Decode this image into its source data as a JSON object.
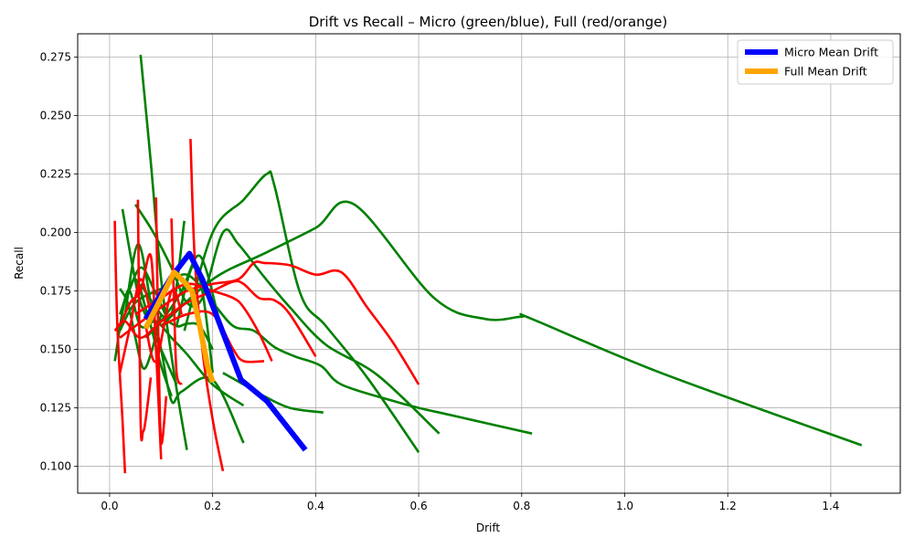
{
  "chart_data": {
    "type": "line",
    "title": "Drift vs Recall – Micro (green/blue), Full (red/orange)",
    "xlabel": "Drift",
    "ylabel": "Recall",
    "xlim": [
      -0.062,
      1.535
    ],
    "ylim": [
      0.0885,
      0.285
    ],
    "xticks": [
      0.0,
      0.2,
      0.4,
      0.6,
      0.8,
      1.0,
      1.2,
      1.4
    ],
    "xtick_labels": [
      "0.0",
      "0.2",
      "0.4",
      "0.6",
      "0.8",
      "1.0",
      "1.2",
      "1.4"
    ],
    "yticks": [
      0.1,
      0.125,
      0.15,
      0.175,
      0.2,
      0.225,
      0.25,
      0.275
    ],
    "ytick_labels": [
      "0.100",
      "0.125",
      "0.150",
      "0.175",
      "0.200",
      "0.225",
      "0.250",
      "0.275"
    ],
    "grid": true,
    "legend_position": "top-right",
    "colors": {
      "micro": "#008000",
      "full": "#ff0000",
      "micro_mean": "#0000ff",
      "full_mean": "#ffa500"
    },
    "legend": [
      {
        "label": "Micro Mean Drift",
        "color": "#0000ff"
      },
      {
        "label": "Full Mean Drift",
        "color": "#ffa500"
      }
    ],
    "mean_series": [
      {
        "name": "Micro Mean Drift",
        "color": "#0000ff",
        "x": [
          0.07,
          0.12,
          0.155,
          0.18,
          0.21,
          0.255,
          0.305,
          0.38
        ],
        "y": [
          0.163,
          0.181,
          0.191,
          0.18,
          0.163,
          0.137,
          0.128,
          0.107
        ]
      },
      {
        "name": "Full Mean Drift",
        "color": "#ffa500",
        "x": [
          0.07,
          0.1,
          0.125,
          0.14,
          0.16,
          0.175,
          0.19,
          0.2
        ],
        "y": [
          0.159,
          0.172,
          0.183,
          0.18,
          0.175,
          0.16,
          0.143,
          0.136
        ]
      }
    ],
    "micro_lines": [
      {
        "x": [
          0.06,
          0.08,
          0.1,
          0.125,
          0.15
        ],
        "y": [
          0.276,
          0.23,
          0.18,
          0.14,
          0.107
        ]
      },
      {
        "x": [
          0.145,
          0.2,
          0.26,
          0.305,
          0.32,
          0.37,
          0.42,
          0.5,
          0.6
        ],
        "y": [
          0.158,
          0.2,
          0.214,
          0.225,
          0.22,
          0.174,
          0.16,
          0.138,
          0.106
        ]
      },
      {
        "x": [
          0.1,
          0.2,
          0.3,
          0.4,
          0.475,
          0.63,
          0.73,
          0.8,
          0.82,
          1.07,
          1.46
        ],
        "y": [
          0.16,
          0.18,
          0.191,
          0.202,
          0.212,
          0.172,
          0.163,
          0.164,
          0.163,
          0.14,
          0.109
        ]
      },
      {
        "x": [
          0.025,
          0.045,
          0.06,
          0.09,
          0.13
        ],
        "y": [
          0.21,
          0.185,
          0.17,
          0.155,
          0.135
        ]
      },
      {
        "x": [
          0.05,
          0.085,
          0.12,
          0.15,
          0.18,
          0.22,
          0.25,
          0.3,
          0.35,
          0.42,
          0.52,
          0.64
        ],
        "y": [
          0.212,
          0.2,
          0.185,
          0.17,
          0.172,
          0.2,
          0.195,
          0.181,
          0.168,
          0.152,
          0.139,
          0.114
        ]
      },
      {
        "x": [
          0.02,
          0.035,
          0.05,
          0.065,
          0.08,
          0.1
        ],
        "y": [
          0.176,
          0.17,
          0.155,
          0.142,
          0.148,
          0.165
        ]
      },
      {
        "x": [
          0.06,
          0.1,
          0.13,
          0.15,
          0.175,
          0.2
        ],
        "y": [
          0.178,
          0.165,
          0.16,
          0.161,
          0.16,
          0.15
        ]
      },
      {
        "x": [
          0.01,
          0.035,
          0.06,
          0.09,
          0.12,
          0.15,
          0.2,
          0.26
        ],
        "y": [
          0.145,
          0.175,
          0.16,
          0.162,
          0.155,
          0.148,
          0.135,
          0.126
        ]
      },
      {
        "x": [
          0.02,
          0.05,
          0.1,
          0.15,
          0.2,
          0.24,
          0.28,
          0.32,
          0.36,
          0.41,
          0.45,
          0.55,
          0.6,
          0.66,
          0.82
        ],
        "y": [
          0.158,
          0.17,
          0.176,
          0.182,
          0.17,
          0.16,
          0.158,
          0.151,
          0.147,
          0.143,
          0.135,
          0.128,
          0.125,
          0.122,
          0.114
        ]
      },
      {
        "x": [
          0.03,
          0.055,
          0.08,
          0.1,
          0.12,
          0.14,
          0.2,
          0.26
        ],
        "y": [
          0.165,
          0.195,
          0.17,
          0.15,
          0.128,
          0.132,
          0.137,
          0.11
        ]
      },
      {
        "x": [
          0.13,
          0.16,
          0.18,
          0.2
        ],
        "y": [
          0.16,
          0.185,
          0.175,
          0.14
        ]
      },
      {
        "x": [
          0.03,
          0.06,
          0.09,
          0.12,
          0.145
        ],
        "y": [
          0.17,
          0.185,
          0.174,
          0.165,
          0.205
        ]
      },
      {
        "x": [
          0.06,
          0.08,
          0.1,
          0.12
        ],
        "y": [
          0.175,
          0.16,
          0.143,
          0.13
        ]
      },
      {
        "x": [
          0.07,
          0.1,
          0.14,
          0.175,
          0.21
        ],
        "y": [
          0.155,
          0.162,
          0.175,
          0.19,
          0.165
        ]
      },
      {
        "x": [
          0.02,
          0.05,
          0.08,
          0.1
        ],
        "y": [
          0.165,
          0.18,
          0.162,
          0.175
        ]
      },
      {
        "x": [
          0.22,
          0.26,
          0.3,
          0.35,
          0.415
        ],
        "y": [
          0.14,
          0.135,
          0.13,
          0.125,
          0.123
        ]
      }
    ],
    "full_lines": [
      {
        "x": [
          0.01,
          0.015,
          0.025,
          0.03
        ],
        "y": [
          0.205,
          0.16,
          0.12,
          0.097
        ]
      },
      {
        "x": [
          0.157,
          0.165,
          0.18,
          0.2,
          0.22
        ],
        "y": [
          0.24,
          0.19,
          0.15,
          0.12,
          0.098
        ]
      },
      {
        "x": [
          0.055,
          0.06,
          0.065,
          0.07,
          0.08
        ],
        "y": [
          0.214,
          0.12,
          0.115,
          0.12,
          0.138
        ]
      },
      {
        "x": [
          0.09,
          0.095,
          0.1,
          0.11
        ],
        "y": [
          0.215,
          0.15,
          0.11,
          0.13
        ]
      },
      {
        "x": [
          0.12,
          0.125,
          0.13,
          0.14
        ],
        "y": [
          0.206,
          0.17,
          0.14,
          0.135
        ]
      },
      {
        "x": [
          0.02,
          0.04,
          0.06,
          0.08,
          0.09,
          0.1
        ],
        "y": [
          0.16,
          0.17,
          0.175,
          0.19,
          0.15,
          0.103
        ]
      },
      {
        "x": [
          0.02,
          0.05,
          0.1,
          0.15,
          0.2,
          0.25,
          0.28,
          0.3,
          0.35,
          0.4,
          0.45,
          0.5,
          0.55,
          0.6
        ],
        "y": [
          0.155,
          0.16,
          0.168,
          0.175,
          0.178,
          0.18,
          0.187,
          0.187,
          0.186,
          0.182,
          0.183,
          0.168,
          0.153,
          0.135
        ]
      },
      {
        "x": [
          0.01,
          0.03,
          0.06,
          0.1,
          0.15,
          0.2,
          0.24,
          0.26,
          0.29,
          0.32,
          0.35,
          0.4
        ],
        "y": [
          0.158,
          0.162,
          0.155,
          0.162,
          0.17,
          0.175,
          0.179,
          0.178,
          0.172,
          0.171,
          0.165,
          0.147
        ]
      },
      {
        "x": [
          0.05,
          0.1,
          0.15,
          0.2,
          0.24,
          0.26,
          0.29,
          0.315
        ],
        "y": [
          0.165,
          0.172,
          0.178,
          0.175,
          0.172,
          0.168,
          0.157,
          0.145
        ]
      },
      {
        "x": [
          0.1,
          0.15,
          0.2,
          0.24,
          0.26,
          0.3
        ],
        "y": [
          0.16,
          0.165,
          0.165,
          0.15,
          0.145,
          0.145
        ]
      },
      {
        "x": [
          0.02,
          0.04,
          0.06,
          0.08
        ],
        "y": [
          0.14,
          0.16,
          0.18,
          0.165
        ]
      },
      {
        "x": [
          0.07,
          0.09,
          0.12,
          0.14
        ],
        "y": [
          0.16,
          0.145,
          0.175,
          0.165
        ]
      }
    ]
  }
}
